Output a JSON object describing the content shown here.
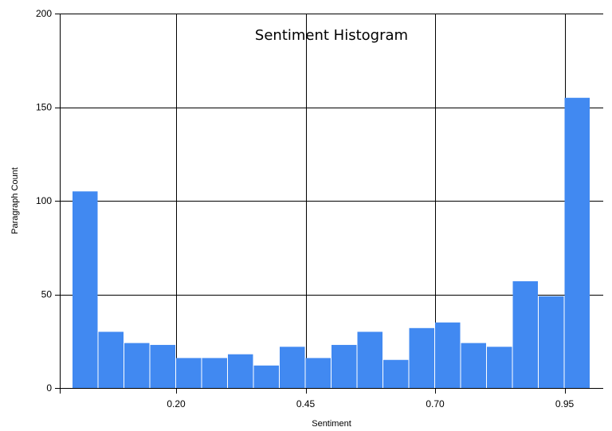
{
  "chart_data": {
    "type": "bar",
    "title": "Sentiment Histogram",
    "xlabel": "Sentiment",
    "ylabel": "Paragraph Count",
    "bin_width": 0.05,
    "bins_start": [
      0.0,
      0.05,
      0.1,
      0.15,
      0.2,
      0.25,
      0.3,
      0.35,
      0.4,
      0.45,
      0.5,
      0.55,
      0.6,
      0.65,
      0.7,
      0.75,
      0.8,
      0.85,
      0.9,
      0.95
    ],
    "values": [
      105,
      30,
      24,
      23,
      16,
      16,
      18,
      12,
      22,
      16,
      23,
      30,
      15,
      32,
      35,
      24,
      22,
      57,
      49,
      155
    ],
    "xticks": [
      "0.20",
      "0.45",
      "0.70",
      "0.95"
    ],
    "xtick_values": [
      0.2,
      0.45,
      0.7,
      0.95
    ],
    "yticks": [
      "0",
      "50",
      "100",
      "150",
      "200"
    ],
    "ytick_values": [
      0,
      50,
      100,
      150,
      200
    ],
    "ylim": [
      0,
      200
    ],
    "grid": true,
    "bar_color": "#4189f1"
  }
}
